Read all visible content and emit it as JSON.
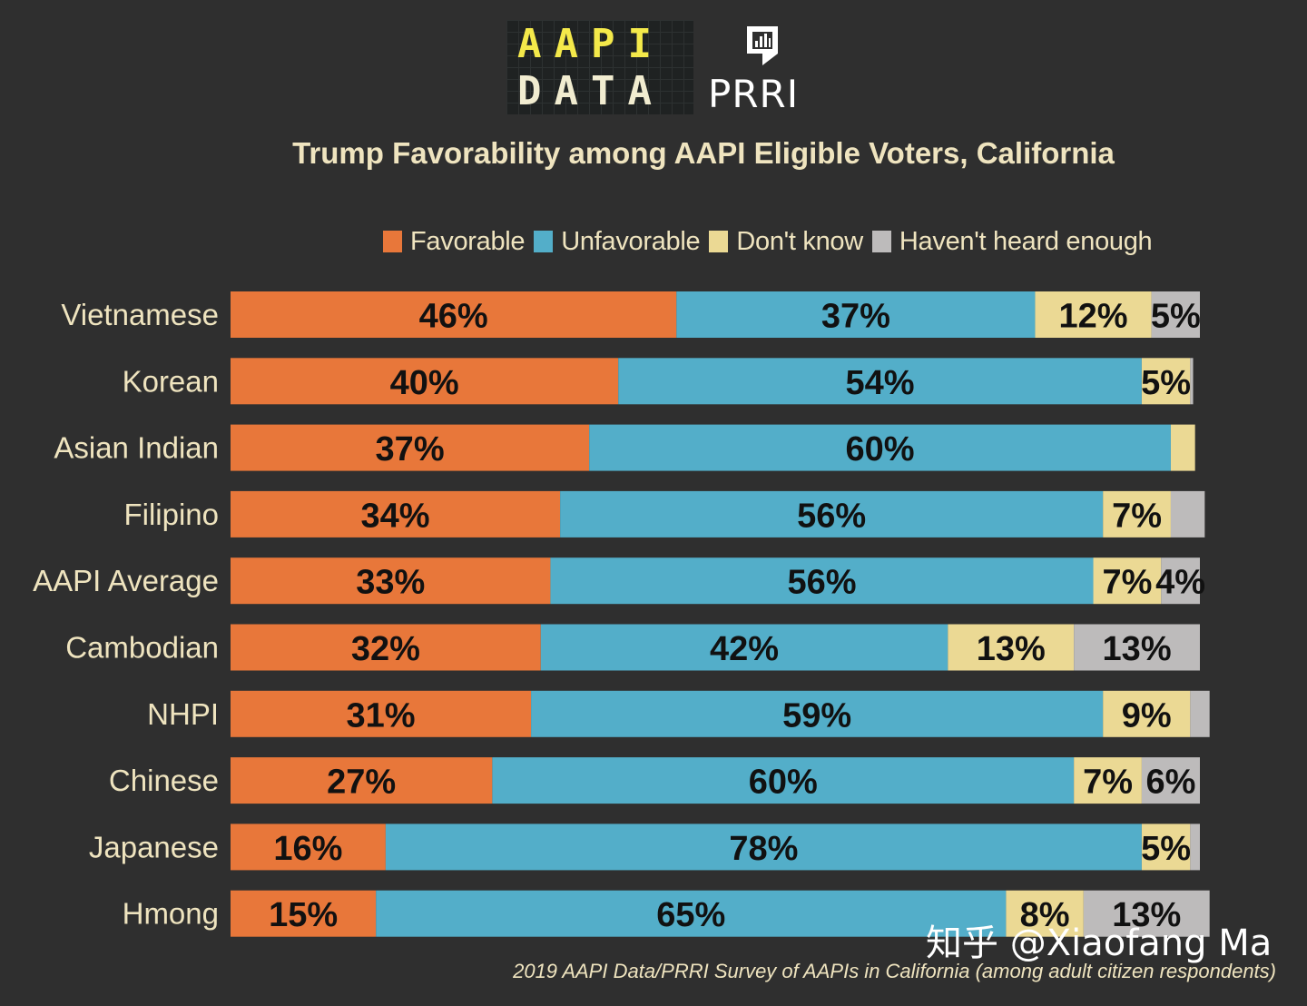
{
  "logos": {
    "aapi_line1": "AAPI",
    "aapi_line2": "DATA",
    "prri": "PRRI"
  },
  "watermark": "知乎 @Xiaofang Ma",
  "source_note": "2019 AAPI Data/PRRI Survey of AAPIs in California (among adult citizen respondents)",
  "chart_data": {
    "type": "bar",
    "orientation": "horizontal",
    "stacked": true,
    "title": "Trump Favorability among AAPI Eligible Voters, California",
    "xlabel": "",
    "ylabel": "",
    "xlim": [
      0,
      100
    ],
    "grid": false,
    "legend_position": "top",
    "categories": [
      "Vietnamese",
      "Korean",
      "Asian Indian",
      "Filipino",
      "AAPI Average",
      "Cambodian",
      "NHPI",
      "Chinese",
      "Japanese",
      "Hmong"
    ],
    "series": [
      {
        "name": "Favorable",
        "color": "#e8773a",
        "values": [
          46,
          40,
          37,
          34,
          33,
          32,
          31,
          27,
          16,
          15
        ],
        "labels": [
          "46%",
          "40%",
          "37%",
          "34%",
          "33%",
          "32%",
          "31%",
          "27%",
          "16%",
          "15%"
        ]
      },
      {
        "name": "Unfavorable",
        "color": "#53aec9",
        "values": [
          37,
          54,
          60,
          56,
          56,
          42,
          59,
          60,
          78,
          65
        ],
        "labels": [
          "37%",
          "54%",
          "60%",
          "56%",
          "56%",
          "42%",
          "59%",
          "60%",
          "78%",
          "65%"
        ]
      },
      {
        "name": "Don't know",
        "color": "#ebd994",
        "values": [
          12,
          5,
          2.5,
          7,
          7,
          13,
          9,
          7,
          5,
          8
        ],
        "labels": [
          "12%",
          "5%",
          "",
          "7%",
          "7%",
          "13%",
          "9%",
          "7%",
          "5%",
          "8%"
        ]
      },
      {
        "name": "Haven't heard enough",
        "color": "#bdbbbb",
        "values": [
          5,
          0.3,
          0,
          3.5,
          4,
          13,
          2,
          6,
          1,
          13
        ],
        "labels": [
          "5%",
          "",
          "",
          "",
          "4%",
          "13%",
          "",
          "6%",
          "",
          "13%"
        ]
      }
    ]
  }
}
